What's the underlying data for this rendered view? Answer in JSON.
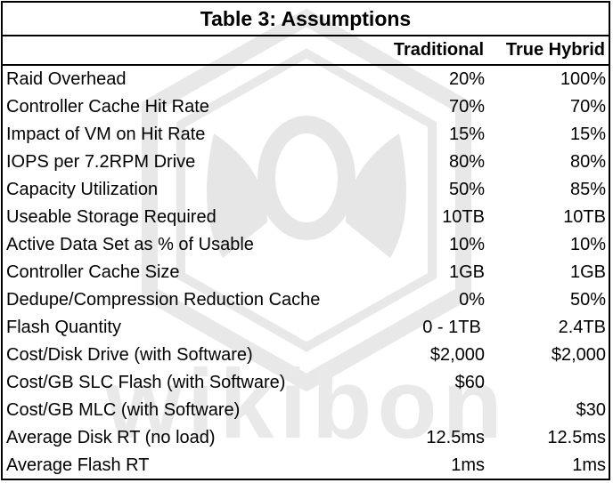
{
  "title": "Table 3: Assumptions",
  "columns": [
    "Traditional",
    "True Hybrid"
  ],
  "rows": [
    {
      "label": "Raid Overhead",
      "traditional": "20%",
      "hybrid": "100%"
    },
    {
      "label": "Controller Cache Hit Rate",
      "traditional": "70%",
      "hybrid": "70%"
    },
    {
      "label": "Impact of VM on Hit Rate",
      "traditional": "15%",
      "hybrid": "15%"
    },
    {
      "label": "IOPS per 7.2RPM Drive",
      "traditional": "80%",
      "hybrid": "80%"
    },
    {
      "label": "Capacity Utilization",
      "traditional": "50%",
      "hybrid": "85%"
    },
    {
      "label": "Useable Storage Required",
      "traditional": "10TB",
      "hybrid": "10TB"
    },
    {
      "label": "Active Data Set as % of Usable",
      "traditional": "10%",
      "hybrid": "10%"
    },
    {
      "label": "Controller Cache Size",
      "traditional": "1GB",
      "hybrid": "1GB"
    },
    {
      "label": "Dedupe/Compression Reduction Cache",
      "traditional": "0%",
      "hybrid": "50%"
    },
    {
      "label": "Flash Quantity",
      "traditional": "0 - 1TB",
      "hybrid": "2.4TB"
    },
    {
      "label": "Cost/Disk Drive (with Software)",
      "traditional": "$2,000",
      "hybrid": "$2,000"
    },
    {
      "label": "Cost/GB SLC Flash (with Software)",
      "traditional": "$60",
      "hybrid": ""
    },
    {
      "label": "Cost/GB MLC (with Software)",
      "traditional": "",
      "hybrid": "$30"
    },
    {
      "label": "Average Disk RT (no load)",
      "traditional": "12.5ms",
      "hybrid": "12.5ms"
    },
    {
      "label": "Average Flash RT",
      "traditional": "1ms",
      "hybrid": "1ms"
    }
  ],
  "watermark": {
    "text": "wikibon",
    "color": "#e6e6e6",
    "icon": "bee-hexagon-logo"
  }
}
